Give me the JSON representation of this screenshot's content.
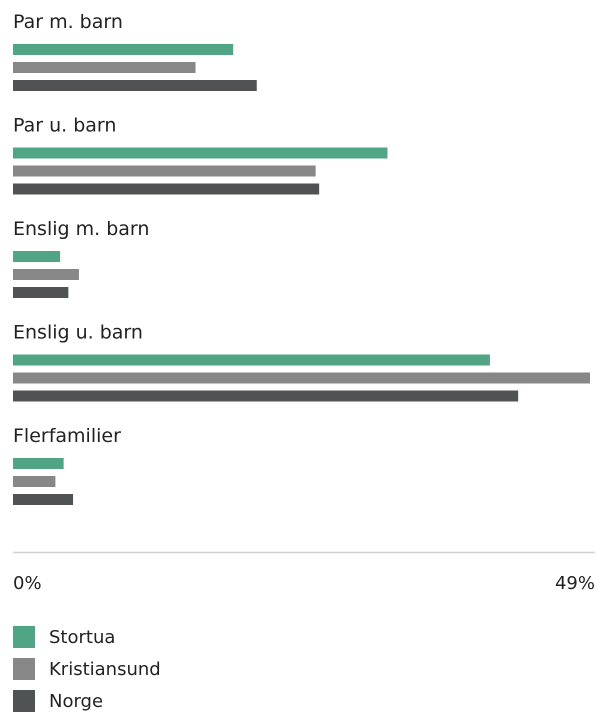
{
  "chart_data": {
    "type": "bar",
    "orientation": "horizontal",
    "categories": [
      "Par m. barn",
      "Par u. barn",
      "Enslig m. barn",
      "Enslig u. barn",
      "Flerfamilier"
    ],
    "series": [
      {
        "name": "Stortua",
        "color": "#4fa584",
        "values": [
          18.7,
          31.8,
          4.0,
          40.5,
          4.3
        ]
      },
      {
        "name": "Kristiansund",
        "color": "#878787",
        "values": [
          15.5,
          25.7,
          5.6,
          49.0,
          3.6
        ]
      },
      {
        "name": "Norge",
        "color": "#4f5354",
        "values": [
          20.7,
          26.0,
          4.7,
          42.9,
          5.1
        ]
      }
    ],
    "xlim": [
      0,
      49
    ],
    "x_tick_labels": [
      "0%",
      "49%"
    ],
    "legend_position": "bottom-left",
    "grid": false,
    "title": "",
    "xlabel": "",
    "ylabel": ""
  }
}
